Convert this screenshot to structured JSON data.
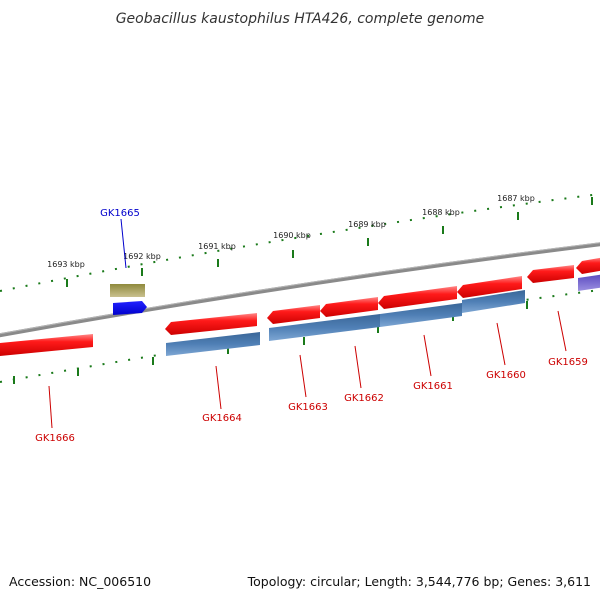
{
  "title": "Geobacillus kaustophilus HTA426, complete genome",
  "footer": {
    "accession": "Accession: NC_006510",
    "summary": "Topology: circular; Length: 3,544,776 bp; Genes: 3,611"
  },
  "colors": {
    "backbone": "#888888",
    "cds": "#ee1111",
    "gene": "#4a78aa",
    "trna": "#1111ee",
    "misc": "#a8a060",
    "other": "#6a5acd",
    "tick": "#1a7a1a",
    "label_red": "#cc0000",
    "label_blue": "#0000cc"
  },
  "ticks": [
    {
      "label": "1693 kbp"
    },
    {
      "label": "1692 kbp"
    },
    {
      "label": "1691 kbp"
    },
    {
      "label": "1690 kbp"
    },
    {
      "label": "1689 kbp"
    },
    {
      "label": "1688 kbp"
    },
    {
      "label": "1687 kbp"
    }
  ],
  "genes": [
    {
      "label": "GK1666"
    },
    {
      "label": "GK1665"
    },
    {
      "label": "GK1664"
    },
    {
      "label": "GK1663"
    },
    {
      "label": "GK1662"
    },
    {
      "label": "GK1661"
    },
    {
      "label": "GK1660"
    },
    {
      "label": "GK1659"
    }
  ]
}
